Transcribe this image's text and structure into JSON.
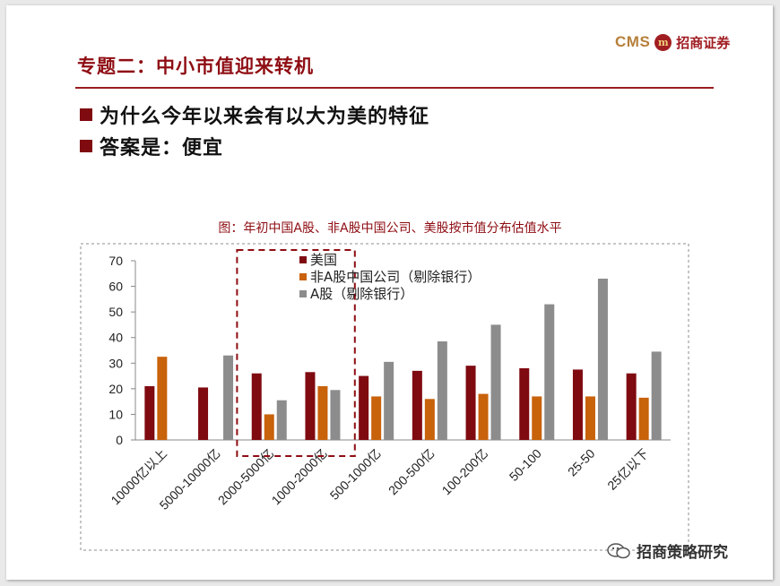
{
  "header": {
    "logo_text_en": "CMS",
    "logo_mark": "m",
    "logo_text_cn": "招商证券",
    "title": "专题二：中小市值迎来转机"
  },
  "bullets": [
    "为什么今年以来会有以大为美的特征",
    "答案是：便宜"
  ],
  "chart_data": {
    "type": "bar",
    "title": "图：年初中国A股、非A股中国公司、美股按市值分布估值水平",
    "categories": [
      "10000亿以上",
      "5000-10000亿",
      "2000-5000亿",
      "1000-2000亿",
      "500-1000亿",
      "200-500亿",
      "100-200亿",
      "50-100",
      "25-50",
      "25亿以下"
    ],
    "series": [
      {
        "name": "美国",
        "color": "#7f0a10",
        "values": [
          21,
          20.5,
          26,
          26.5,
          25,
          27,
          29,
          28,
          27.5,
          26
        ]
      },
      {
        "name": "非A股中国公司（剔除银行）",
        "color": "#c8620b",
        "values": [
          32.5,
          null,
          10,
          21,
          17,
          16,
          18,
          17,
          17,
          16.5
        ]
      },
      {
        "name": "A股（剔除银行）",
        "color": "#8c8c8c",
        "values": [
          null,
          33,
          15.5,
          19.5,
          30.5,
          38.5,
          45,
          53,
          63,
          34.5
        ]
      }
    ],
    "ylim": [
      0,
      70
    ],
    "yticks": [
      0,
      10,
      20,
      30,
      40,
      50,
      60,
      70
    ],
    "legend_position": "top-left",
    "highlight_categories": [
      "2000-5000亿",
      "1000-2000亿"
    ]
  },
  "watermark": {
    "text": "招商策略研究"
  },
  "icons": {
    "logo": "cms-logo-icon",
    "bullet": "square-bullet-icon",
    "watermark": "wechat-icon"
  }
}
